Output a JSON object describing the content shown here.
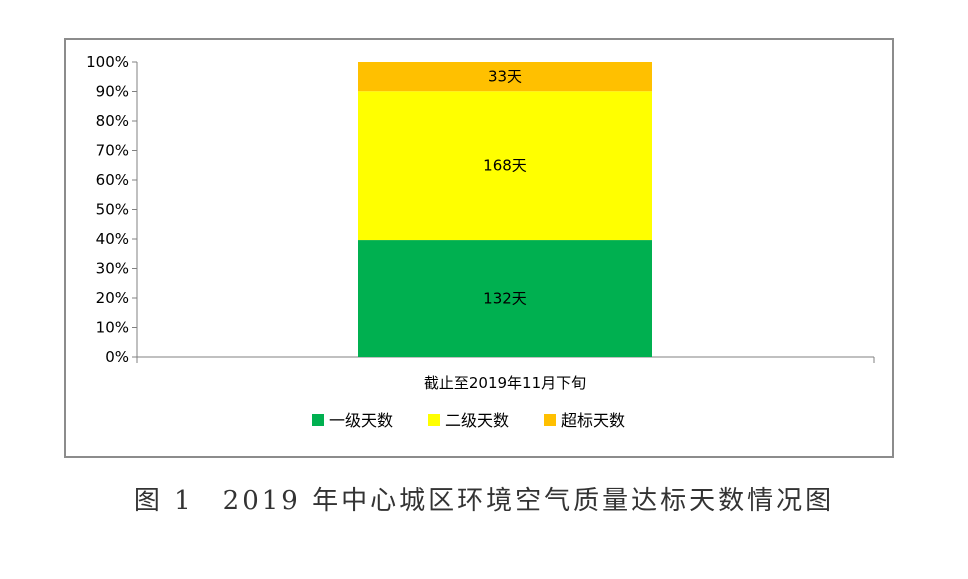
{
  "chart_data": {
    "type": "bar",
    "stacked": "percent",
    "categories": [
      "截止至2019年11月下旬"
    ],
    "series": [
      {
        "name": "一级天数",
        "values": [
          132
        ],
        "label": "132天",
        "color": "#00b050"
      },
      {
        "name": "二级天数",
        "values": [
          168
        ],
        "label": "168天",
        "color": "#ffff00"
      },
      {
        "name": "超标天数",
        "values": [
          33
        ],
        "label": "33天",
        "color": "#ffc000"
      }
    ],
    "yticks": [
      "0%",
      "10%",
      "20%",
      "30%",
      "40%",
      "50%",
      "60%",
      "70%",
      "80%",
      "90%",
      "100%"
    ],
    "ylim": [
      0,
      100
    ],
    "grid": false,
    "legend": "bottom"
  },
  "caption": "图 1　2019 年中心城区环境空气质量达标天数情况图"
}
